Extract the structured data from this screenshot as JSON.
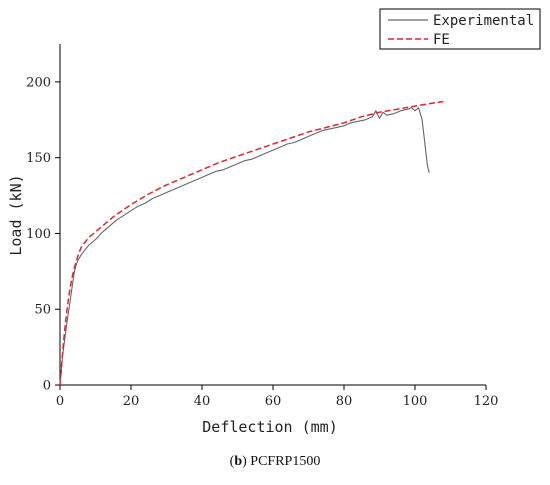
{
  "caption": {
    "panel": "b",
    "name": "PCFRP1500"
  },
  "chart_data": {
    "type": "line",
    "title": "",
    "xlabel": "Deflection (mm)",
    "ylabel": "Load (kN)",
    "xlim": [
      0,
      120
    ],
    "ylim": [
      0,
      225
    ],
    "xticks": [
      0,
      20,
      40,
      60,
      80,
      100,
      120
    ],
    "yticks": [
      0,
      50,
      100,
      150,
      200
    ],
    "grid": false,
    "legend_position": "top-right",
    "series": [
      {
        "name": "Experimental",
        "color": "#666666",
        "style": "solid",
        "x": [
          0,
          0.3,
          0.6,
          1,
          1.5,
          2,
          2.5,
          3,
          3.5,
          4,
          4.5,
          5,
          5.5,
          6,
          7,
          8,
          9,
          10,
          12,
          14,
          16,
          18,
          20,
          22,
          24,
          26,
          28,
          30,
          32,
          34,
          36,
          38,
          40,
          42,
          44,
          46,
          48,
          50,
          52,
          54,
          56,
          58,
          60,
          62,
          64,
          66,
          68,
          70,
          72,
          74,
          76,
          78,
          80,
          82,
          84,
          86,
          88,
          89,
          90,
          91,
          92,
          94,
          96,
          98,
          99,
          100,
          101,
          102,
          102.5,
          103,
          103.5,
          104
        ],
        "y": [
          0,
          8,
          16,
          24,
          33,
          42,
          50,
          58,
          66,
          74,
          79,
          82,
          84,
          86,
          89,
          92,
          94,
          96,
          101,
          105,
          109,
          112,
          115,
          118,
          120,
          123,
          125,
          127,
          129,
          131,
          133,
          135,
          137,
          139,
          141,
          142,
          144,
          146,
          148,
          149,
          151,
          153,
          155,
          157,
          159,
          160,
          162,
          164,
          166,
          168,
          169,
          170,
          171,
          173,
          174,
          175,
          177,
          181,
          176,
          180,
          178,
          179,
          181,
          182,
          183,
          181,
          183,
          175,
          165,
          155,
          145,
          140
        ]
      },
      {
        "name": "FE",
        "color": "#e3242b",
        "style": "dashed",
        "x": [
          0,
          0.5,
          1,
          1.5,
          2,
          2.5,
          3,
          3.5,
          4,
          4.5,
          5,
          5.5,
          6,
          7,
          8,
          10,
          12,
          15,
          20,
          25,
          30,
          35,
          40,
          45,
          50,
          55,
          60,
          65,
          70,
          75,
          80,
          85,
          90,
          95,
          100,
          105,
          108
        ],
        "y": [
          0,
          15,
          28,
          40,
          50,
          59,
          66,
          72,
          77,
          81,
          85,
          88,
          91,
          94,
          97,
          101,
          105,
          111,
          119,
          126,
          132,
          137,
          142,
          147,
          151,
          155,
          159,
          163,
          167,
          170,
          173,
          177,
          180,
          182,
          184,
          186,
          187
        ]
      }
    ]
  }
}
